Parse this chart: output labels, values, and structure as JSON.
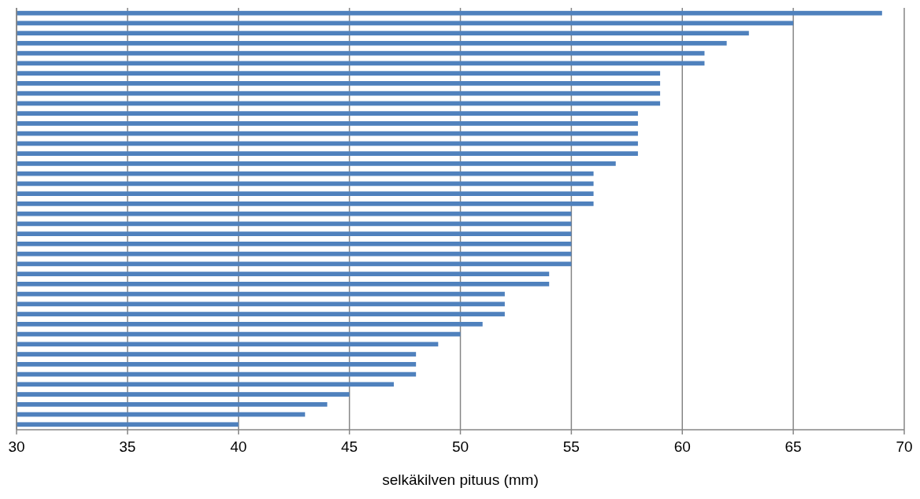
{
  "chart_data": {
    "type": "bar",
    "orientation": "horizontal",
    "xlabel": "selkäkilven pituus (mm)",
    "categories": [
      null,
      null,
      null,
      null,
      null,
      null,
      null,
      null,
      null,
      null,
      null,
      null,
      null,
      null,
      null,
      null,
      null,
      null,
      null,
      null,
      null,
      null,
      null,
      null,
      null,
      null,
      null,
      null,
      null,
      null,
      null,
      null,
      null,
      null,
      null,
      null,
      null,
      null,
      null,
      null,
      null,
      null
    ],
    "values": [
      69,
      65,
      63,
      62,
      61,
      61,
      59,
      59,
      59,
      59,
      58,
      58,
      58,
      58,
      58,
      57,
      56,
      56,
      56,
      56,
      55,
      55,
      55,
      55,
      55,
      55,
      54,
      54,
      52,
      52,
      52,
      51,
      50,
      49,
      48,
      48,
      48,
      47,
      45,
      44,
      43,
      40
    ],
    "color": "#4f81bd",
    "xlim": [
      30,
      70
    ],
    "xticks": [
      30,
      35,
      40,
      45,
      50,
      55,
      60,
      65,
      70
    ],
    "grid": "x",
    "tick_labels": "x"
  }
}
